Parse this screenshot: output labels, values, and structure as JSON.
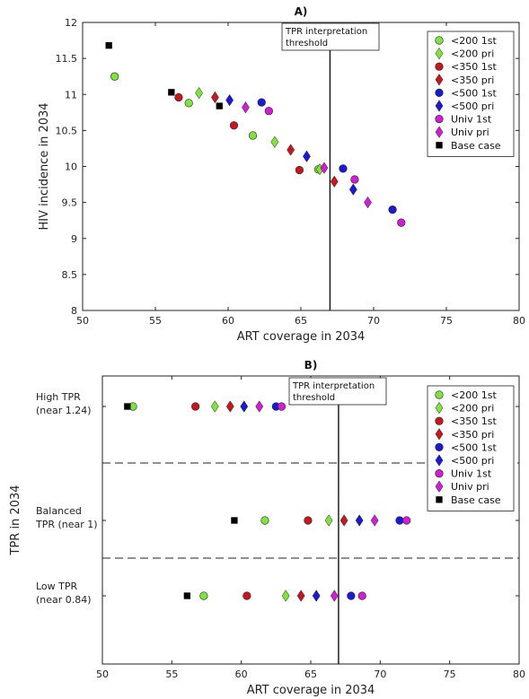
{
  "chart_data": [
    {
      "type": "scatter",
      "title": "A)",
      "xlabel": "ART coverage in 2034",
      "ylabel": "HIV incidence in 2034",
      "xlim": [
        50,
        80
      ],
      "ylim": [
        8,
        12
      ],
      "xticks": [
        "50",
        "55",
        "60",
        "65",
        "70",
        "75",
        "80"
      ],
      "yticks": [
        "8",
        "8.5",
        "9",
        "9.5",
        "10",
        "10.5",
        "11",
        "11.5",
        "12"
      ],
      "threshold_x": 67,
      "threshold_label": [
        "TPR interpretation",
        "threshold"
      ],
      "legend_position": "top-right",
      "series": [
        {
          "name": "<200 1st",
          "marker": "circle",
          "color": "#7ee33b",
          "points": [
            [
              52.2,
              11.25
            ],
            [
              57.3,
              10.88
            ],
            [
              61.7,
              10.43
            ],
            [
              66.2,
              9.96
            ]
          ]
        },
        {
          "name": "<200 pri",
          "marker": "diamond",
          "color": "#7ee33b",
          "points": [
            [
              58.0,
              11.02
            ],
            [
              63.2,
              10.34
            ],
            [
              66.3,
              9.96
            ]
          ]
        },
        {
          "name": "<350 1st",
          "marker": "circle",
          "color": "#c8161e",
          "points": [
            [
              56.6,
              10.96
            ],
            [
              60.4,
              10.57
            ],
            [
              64.9,
              9.95
            ]
          ]
        },
        {
          "name": "<350 pri",
          "marker": "diamond",
          "color": "#c8161e",
          "points": [
            [
              59.1,
              10.96
            ],
            [
              64.3,
              10.23
            ],
            [
              67.3,
              9.79
            ]
          ]
        },
        {
          "name": "<500 1st",
          "marker": "circle",
          "color": "#1a1ad6",
          "points": [
            [
              62.3,
              10.89
            ],
            [
              67.9,
              9.97
            ],
            [
              71.3,
              9.4
            ]
          ]
        },
        {
          "name": "<500 pri",
          "marker": "diamond",
          "color": "#1a1ad6",
          "points": [
            [
              60.1,
              10.92
            ],
            [
              65.4,
              10.14
            ],
            [
              68.6,
              9.68
            ]
          ]
        },
        {
          "name": "Univ 1st",
          "marker": "circle",
          "color": "#d21cd6",
          "points": [
            [
              62.8,
              10.77
            ],
            [
              68.7,
              9.82
            ],
            [
              71.9,
              9.22
            ]
          ]
        },
        {
          "name": "Univ pri",
          "marker": "diamond",
          "color": "#d21cd6",
          "points": [
            [
              61.2,
              10.82
            ],
            [
              66.6,
              9.98
            ],
            [
              69.6,
              9.5
            ]
          ]
        },
        {
          "name": "Base case",
          "marker": "square",
          "color": "#000000",
          "points": [
            [
              51.8,
              11.68
            ],
            [
              56.1,
              11.03
            ],
            [
              59.4,
              10.84
            ]
          ]
        }
      ]
    },
    {
      "type": "scatter",
      "title": "B)",
      "xlabel": "ART coverage in 2034",
      "ylabel": "TPR in 2034",
      "xlim": [
        50,
        80
      ],
      "xticks": [
        "50",
        "55",
        "60",
        "65",
        "70",
        "75",
        "80"
      ],
      "categories": [
        [
          "High TPR",
          "(near 1.24)"
        ],
        [
          "Balanced",
          "TPR (near 1)"
        ],
        [
          "Low TPR",
          "(near 0.84)"
        ]
      ],
      "threshold_x": 67,
      "threshold_label": [
        "TPR interpretation",
        "threshold"
      ],
      "legend_position": "top-right",
      "series": [
        {
          "name": "<200 1st",
          "marker": "circle",
          "color": "#7ee33b",
          "points": [
            [
              52.2,
              0
            ],
            [
              61.7,
              1
            ],
            [
              57.3,
              2
            ]
          ]
        },
        {
          "name": "<200 pri",
          "marker": "diamond",
          "color": "#7ee33b",
          "points": [
            [
              58.1,
              0
            ],
            [
              66.3,
              1
            ],
            [
              63.2,
              2
            ]
          ]
        },
        {
          "name": "<350 1st",
          "marker": "circle",
          "color": "#c8161e",
          "points": [
            [
              56.7,
              0
            ],
            [
              64.8,
              1
            ],
            [
              60.4,
              2
            ]
          ]
        },
        {
          "name": "<350 pri",
          "marker": "diamond",
          "color": "#c8161e",
          "points": [
            [
              59.2,
              0
            ],
            [
              67.4,
              1
            ],
            [
              64.3,
              2
            ]
          ]
        },
        {
          "name": "<500 1st",
          "marker": "circle",
          "color": "#1a1ad6",
          "points": [
            [
              62.5,
              0
            ],
            [
              71.4,
              1
            ],
            [
              67.9,
              2
            ]
          ]
        },
        {
          "name": "<500 pri",
          "marker": "diamond",
          "color": "#1a1ad6",
          "points": [
            [
              60.2,
              0
            ],
            [
              68.5,
              1
            ],
            [
              65.4,
              2
            ]
          ]
        },
        {
          "name": "Univ 1st",
          "marker": "circle",
          "color": "#d21cd6",
          "points": [
            [
              62.9,
              0
            ],
            [
              71.9,
              1
            ],
            [
              68.7,
              2
            ]
          ]
        },
        {
          "name": "Univ pri",
          "marker": "diamond",
          "color": "#d21cd6",
          "points": [
            [
              61.3,
              0
            ],
            [
              69.6,
              1
            ],
            [
              66.7,
              2
            ]
          ]
        },
        {
          "name": "Base case",
          "marker": "square",
          "color": "#000000",
          "points": [
            [
              51.8,
              0
            ],
            [
              59.5,
              1
            ],
            [
              56.1,
              2
            ]
          ]
        }
      ]
    }
  ]
}
